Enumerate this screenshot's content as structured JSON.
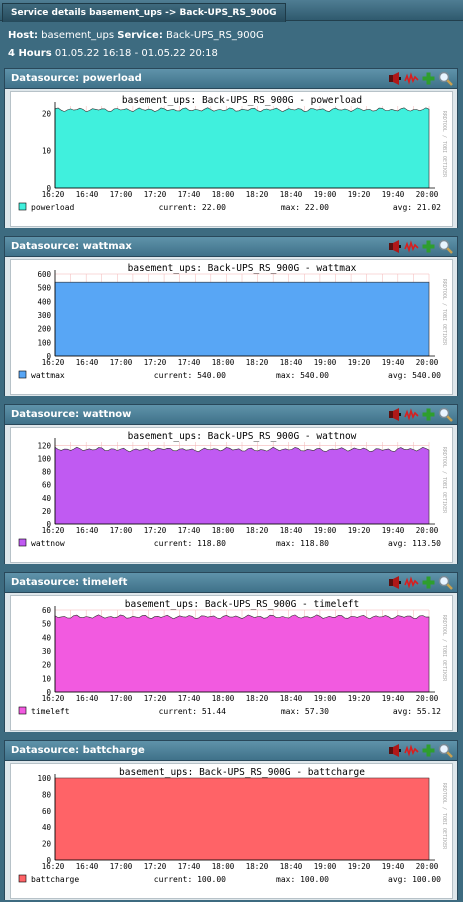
{
  "tab_title": "Service details basement_ups -> Back-UPS_RS_900G",
  "host_label": "Host:",
  "host_value": "basement_ups",
  "service_label": "Service:",
  "service_value": "Back-UPS_RS_900G",
  "period_label": "4 Hours",
  "period_range": "01.05.22 16:18 - 01.05.22 20:18",
  "x_ticks": [
    "16:20",
    "16:40",
    "17:00",
    "17:20",
    "17:40",
    "18:00",
    "18:20",
    "18:40",
    "19:00",
    "19:20",
    "19:40",
    "20:00"
  ],
  "watermark": "RRDTOOL / TOBI OETIKER",
  "legend_labels": {
    "current": "current:",
    "max": "max:",
    "avg": "avg:"
  },
  "colors": {
    "grid": "#f3b6b6"
  },
  "datasources": [
    {
      "header": "Datasource: powerload",
      "title": "basement_ups: Back-UPS_RS_900G - powerload",
      "name": "powerload",
      "current": "22.00",
      "max": "22.00",
      "avg": "21.02",
      "color": "#40f0dd",
      "y_ticks": [
        "20",
        "10",
        "0"
      ],
      "ymax": 22
    },
    {
      "header": "Datasource: wattmax",
      "title": "basement_ups: Back-UPS_RS_900G - wattmax",
      "name": "wattmax",
      "current": "540.00",
      "max": "540.00",
      "avg": "540.00",
      "color": "#58a6f5",
      "y_ticks": [
        "600",
        "500",
        "400",
        "300",
        "200",
        "100",
        "0"
      ],
      "ymax": 600
    },
    {
      "header": "Datasource: wattnow",
      "title": "basement_ups: Back-UPS_RS_900G - wattnow",
      "name": "wattnow",
      "current": "118.80",
      "max": "118.80",
      "avg": "113.50",
      "color": "#c05af2",
      "y_ticks": [
        "120",
        "100",
        "80",
        "60",
        "40",
        "20",
        "0"
      ],
      "ymax": 125
    },
    {
      "header": "Datasource: timeleft",
      "title": "basement_ups: Back-UPS_RS_900G - timeleft",
      "name": "timeleft",
      "current": "51.44",
      "max": "57.30",
      "avg": "55.12",
      "color": "#f25ae0",
      "y_ticks": [
        "60",
        "50",
        "40",
        "30",
        "20",
        "10",
        "0"
      ],
      "ymax": 60
    },
    {
      "header": "Datasource: battcharge",
      "title": "basement_ups: Back-UPS_RS_900G - battcharge",
      "name": "battcharge",
      "current": "100.00",
      "max": "100.00",
      "avg": "100.00",
      "color": "#ff6367",
      "y_ticks": [
        "100",
        "80",
        "60",
        "40",
        "20",
        "0"
      ],
      "ymax": 100
    }
  ],
  "chart_data": [
    {
      "type": "area",
      "title": "basement_ups: Back-UPS_RS_900G - powerload",
      "x": [
        "16:20",
        "16:40",
        "17:00",
        "17:20",
        "17:40",
        "18:00",
        "18:20",
        "18:40",
        "19:00",
        "19:20",
        "19:40",
        "20:00"
      ],
      "series": [
        {
          "name": "powerload",
          "values": [
            21,
            21,
            21,
            21,
            21,
            21,
            21,
            21,
            21,
            21,
            21,
            21
          ]
        }
      ],
      "ylim": [
        0,
        25
      ]
    },
    {
      "type": "area",
      "title": "basement_ups: Back-UPS_RS_900G - wattmax",
      "x": [
        "16:20",
        "16:40",
        "17:00",
        "17:20",
        "17:40",
        "18:00",
        "18:20",
        "18:40",
        "19:00",
        "19:20",
        "19:40",
        "20:00"
      ],
      "series": [
        {
          "name": "wattmax",
          "values": [
            540,
            540,
            540,
            540,
            540,
            540,
            540,
            540,
            540,
            540,
            540,
            540
          ]
        }
      ],
      "ylim": [
        0,
        600
      ]
    },
    {
      "type": "area",
      "title": "basement_ups: Back-UPS_RS_900G - wattnow",
      "x": [
        "16:20",
        "16:40",
        "17:00",
        "17:20",
        "17:40",
        "18:00",
        "18:20",
        "18:40",
        "19:00",
        "19:20",
        "19:40",
        "20:00"
      ],
      "series": [
        {
          "name": "wattnow",
          "values": [
            114,
            114,
            113,
            114,
            113,
            114,
            113,
            114,
            113,
            114,
            113,
            114
          ]
        }
      ],
      "ylim": [
        0,
        125
      ]
    },
    {
      "type": "area",
      "title": "basement_ups: Back-UPS_RS_900G - timeleft",
      "x": [
        "16:20",
        "16:40",
        "17:00",
        "17:20",
        "17:40",
        "18:00",
        "18:20",
        "18:40",
        "19:00",
        "19:20",
        "19:40",
        "20:00"
      ],
      "series": [
        {
          "name": "timeleft",
          "values": [
            55,
            55,
            55,
            55,
            55,
            55,
            55,
            55,
            55,
            55,
            55,
            55
          ]
        }
      ],
      "ylim": [
        0,
        60
      ]
    },
    {
      "type": "area",
      "title": "basement_ups: Back-UPS_RS_900G - battcharge",
      "x": [
        "16:20",
        "16:40",
        "17:00",
        "17:20",
        "17:40",
        "18:00",
        "18:20",
        "18:40",
        "19:00",
        "19:20",
        "19:40",
        "20:00"
      ],
      "series": [
        {
          "name": "battcharge",
          "values": [
            100,
            100,
            100,
            100,
            100,
            100,
            100,
            100,
            100,
            100,
            100,
            100
          ]
        }
      ],
      "ylim": [
        0,
        100
      ]
    }
  ]
}
